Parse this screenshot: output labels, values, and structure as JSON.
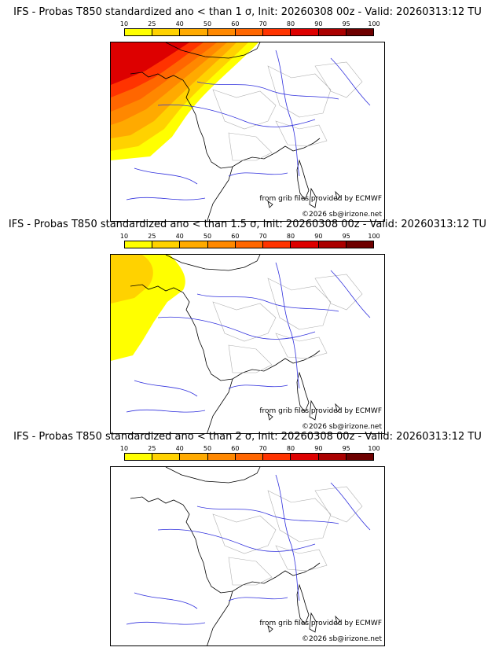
{
  "scale": {
    "ticks": [
      "10",
      "25",
      "40",
      "50",
      "60",
      "70",
      "80",
      "90",
      "95",
      "100"
    ],
    "colors": [
      "#ffff00",
      "#ffd200",
      "#ffaa00",
      "#ff8800",
      "#ff6600",
      "#ff3300",
      "#dd0000",
      "#aa0000",
      "#6e0000"
    ]
  },
  "panels": [
    {
      "title": "IFS - Probas T850  standardized ano < than 1 σ, Init: 20260308 00z - Valid: 20260313:12 TU",
      "source_note": "from grib files provided by ECMWF",
      "copyright": "©2026 sb@irizone.net",
      "max_probability_percent": 80
    },
    {
      "title": "IFS - Probas T850  standardized ano < than 1.5 σ, Init: 20260308 00z - Valid: 20260313:12 TU",
      "source_note": "from grib files provided by ECMWF",
      "copyright": "©2026 sb@irizone.net",
      "max_probability_percent": 25
    },
    {
      "title": "IFS - Probas T850  standardized ano < than 2 σ, Init: 20260308 00z - Valid: 20260313:12 TU",
      "source_note": "from grib files provided by ECMWF",
      "copyright": "©2026 sb@irizone.net",
      "max_probability_percent": 10
    }
  ]
}
